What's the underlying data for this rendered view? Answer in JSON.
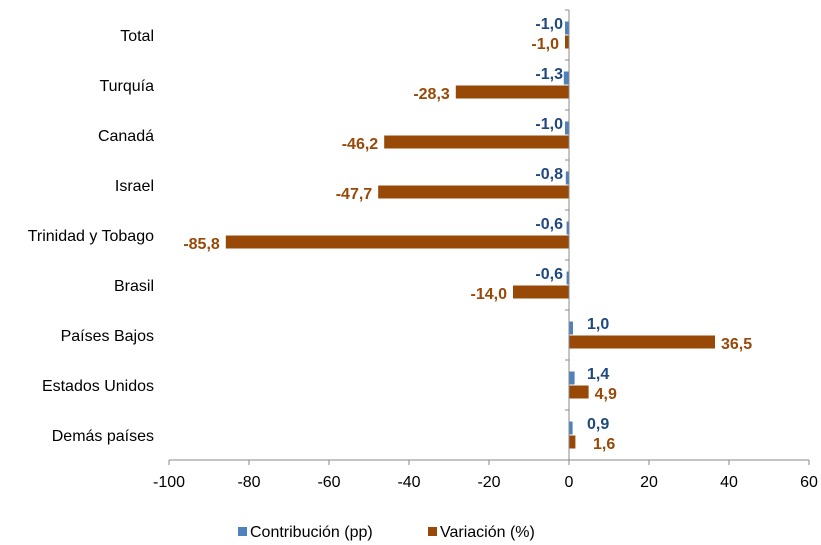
{
  "chart_data": {
    "type": "bar",
    "orientation": "horizontal",
    "categories": [
      "Total",
      "Turquía",
      "Canadá",
      "Israel",
      "Trinidad y Tobago",
      "Brasil",
      "Países Bajos",
      "Estados Unidos",
      "Demás países"
    ],
    "series": [
      {
        "name": "Contribución (pp)",
        "color": "#4F81BD",
        "values": [
          -1.0,
          -1.3,
          -1.0,
          -0.8,
          -0.6,
          -0.6,
          1.0,
          1.4,
          0.9
        ],
        "labels": [
          "-1,0",
          "-1,3",
          "-1,0",
          "-0,8",
          "-0,6",
          "-0,6",
          "1,0",
          "1,4",
          "0,9"
        ]
      },
      {
        "name": "Variación (%)",
        "color": "#984807",
        "values": [
          -1.0,
          -28.3,
          -46.2,
          -47.7,
          -85.8,
          -14.0,
          36.5,
          4.9,
          1.6
        ],
        "labels": [
          "-1,0",
          "-28,3",
          "-46,2",
          "-47,7",
          "-85,8",
          "-14,0",
          "36,5",
          "4,9",
          "1,6"
        ]
      }
    ],
    "xlim": [
      -100,
      60
    ],
    "xticks": [
      -100,
      -80,
      -60,
      -40,
      -20,
      0,
      20,
      40,
      60
    ],
    "title": "",
    "xlabel": "",
    "ylabel": "",
    "grid": false,
    "legend_position": "bottom"
  }
}
